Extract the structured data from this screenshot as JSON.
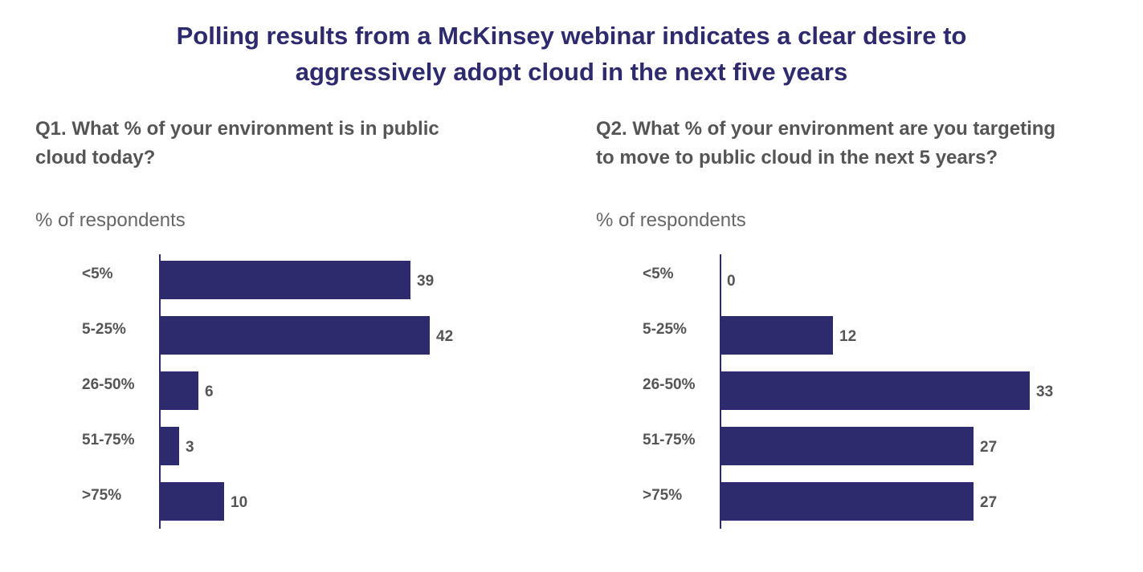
{
  "header": {
    "title_line1": "Polling results from a McKinsey webinar indicates a clear desire to",
    "title_line2": "aggressively adopt cloud in the next five years"
  },
  "colors": {
    "bar": "#2e2a6e",
    "axis": "#2e2a6e",
    "text": "#555555"
  },
  "chart_data": [
    {
      "type": "bar",
      "orientation": "horizontal",
      "title_line1": "Q1. What % of your environment is in public",
      "title_line2": "cloud today?",
      "ylabel": "% of respondents",
      "categories": [
        "<5%",
        "5-25%",
        "26-50%",
        "51-75%",
        ">75%"
      ],
      "values": [
        39,
        42,
        6,
        3,
        10
      ],
      "xlim": [
        0,
        70
      ],
      "grid": false,
      "legend": "none"
    },
    {
      "type": "bar",
      "orientation": "horizontal",
      "title_line1": "Q2. What % of your environment are you targeting",
      "title_line2": "to move to public cloud in the next 5 years?",
      "ylabel": "% of respondents",
      "categories": [
        "<5%",
        "5-25%",
        "26-50%",
        "51-75%",
        ">75%"
      ],
      "values": [
        0,
        12,
        33,
        27,
        27
      ],
      "xlim": [
        0,
        48
      ],
      "grid": false,
      "legend": "none"
    }
  ]
}
